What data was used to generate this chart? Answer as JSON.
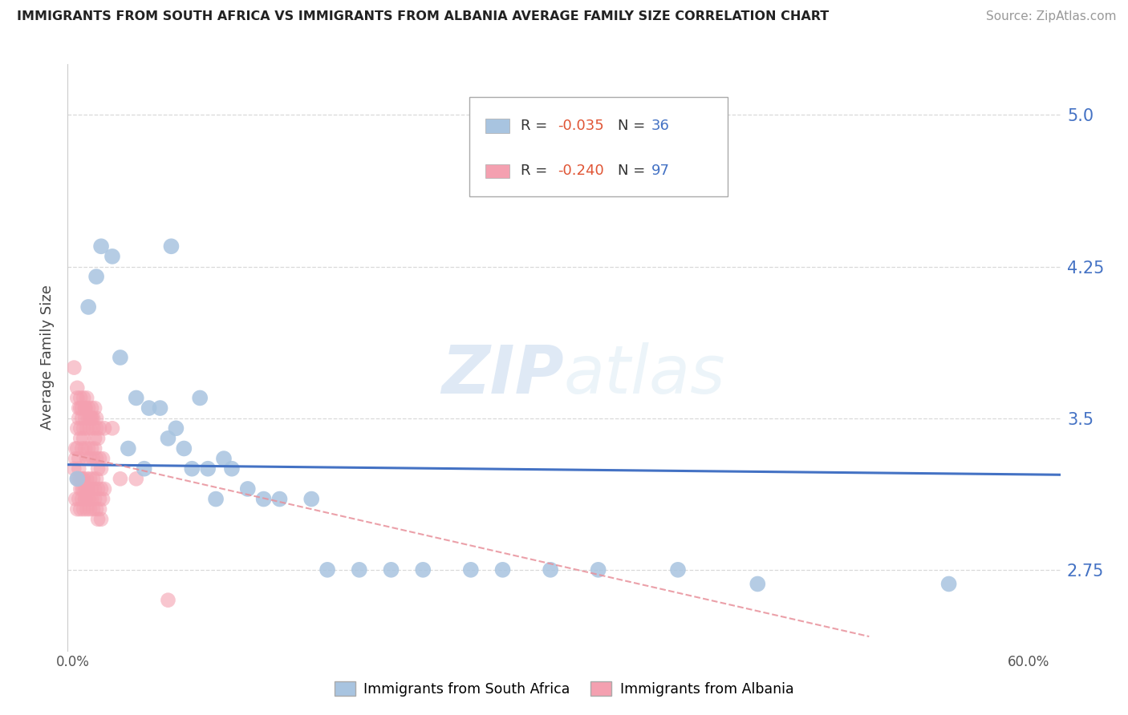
{
  "title": "IMMIGRANTS FROM SOUTH AFRICA VS IMMIGRANTS FROM ALBANIA AVERAGE FAMILY SIZE CORRELATION CHART",
  "source": "Source: ZipAtlas.com",
  "ylabel": "Average Family Size",
  "ylim": [
    2.35,
    5.25
  ],
  "xlim": [
    -0.003,
    0.62
  ],
  "yticks": [
    2.75,
    3.5,
    4.25,
    5.0
  ],
  "xticks": [
    0.0,
    0.1,
    0.2,
    0.3,
    0.4,
    0.5,
    0.6
  ],
  "xtick_labels": [
    "0.0%",
    "",
    "",
    "",
    "",
    "",
    "60.0%"
  ],
  "color_blue": "#a8c4e0",
  "color_pink": "#f4a0b0",
  "line_blue": "#4472c4",
  "bg_color": "#ffffff",
  "grid_color": "#d0d0d0",
  "title_color": "#222222",
  "right_tick_color": "#4472c4",
  "blue_x": [
    0.003,
    0.01,
    0.018,
    0.03,
    0.04,
    0.048,
    0.055,
    0.06,
    0.065,
    0.07,
    0.075,
    0.08,
    0.085,
    0.09,
    0.095,
    0.1,
    0.11,
    0.12,
    0.13,
    0.15,
    0.16,
    0.18,
    0.2,
    0.22,
    0.25,
    0.27,
    0.3,
    0.33,
    0.38,
    0.43,
    0.55,
    0.035,
    0.045,
    0.025,
    0.015,
    0.062
  ],
  "blue_y": [
    3.2,
    4.05,
    4.35,
    3.8,
    3.6,
    3.55,
    3.55,
    3.4,
    3.45,
    3.35,
    3.25,
    3.6,
    3.25,
    3.1,
    3.3,
    3.25,
    3.15,
    3.1,
    3.1,
    3.1,
    2.75,
    2.75,
    2.75,
    2.75,
    2.75,
    2.75,
    2.75,
    2.75,
    2.75,
    2.68,
    2.68,
    3.35,
    3.25,
    4.3,
    4.2,
    4.35
  ],
  "pink_x_dense": [
    0.001,
    0.002,
    0.003,
    0.004,
    0.005,
    0.006,
    0.007,
    0.008,
    0.009,
    0.01,
    0.011,
    0.012,
    0.013,
    0.014,
    0.015,
    0.016,
    0.017,
    0.018,
    0.019,
    0.02,
    0.002,
    0.003,
    0.004,
    0.005,
    0.006,
    0.007,
    0.008,
    0.009,
    0.01,
    0.011,
    0.012,
    0.013,
    0.014,
    0.015,
    0.016,
    0.017,
    0.018,
    0.019,
    0.002,
    0.003,
    0.004,
    0.005,
    0.006,
    0.007,
    0.008,
    0.009,
    0.01,
    0.011,
    0.012,
    0.013,
    0.014,
    0.015,
    0.016,
    0.017,
    0.018,
    0.003,
    0.004,
    0.005,
    0.006,
    0.007,
    0.008,
    0.009,
    0.01,
    0.011,
    0.012,
    0.013,
    0.014,
    0.015,
    0.016,
    0.017,
    0.003,
    0.004,
    0.005,
    0.006,
    0.007,
    0.008,
    0.009,
    0.01,
    0.011,
    0.012,
    0.013,
    0.014,
    0.015,
    0.004,
    0.005,
    0.006,
    0.007,
    0.008,
    0.009,
    0.01
  ],
  "pink_y_dense": [
    3.25,
    3.3,
    3.2,
    3.25,
    3.2,
    3.15,
    3.2,
    3.15,
    3.2,
    3.15,
    3.2,
    3.15,
    3.2,
    3.15,
    3.2,
    3.15,
    3.1,
    3.15,
    3.1,
    3.15,
    3.35,
    3.35,
    3.3,
    3.4,
    3.35,
    3.4,
    3.35,
    3.3,
    3.35,
    3.3,
    3.35,
    3.3,
    3.35,
    3.3,
    3.25,
    3.3,
    3.25,
    3.3,
    3.1,
    3.05,
    3.1,
    3.05,
    3.1,
    3.05,
    3.1,
    3.05,
    3.1,
    3.05,
    3.1,
    3.05,
    3.1,
    3.05,
    3.0,
    3.05,
    3.0,
    3.45,
    3.5,
    3.45,
    3.5,
    3.45,
    3.5,
    3.45,
    3.5,
    3.45,
    3.5,
    3.45,
    3.4,
    3.45,
    3.4,
    3.45,
    3.6,
    3.55,
    3.6,
    3.55,
    3.6,
    3.55,
    3.6,
    3.55,
    3.5,
    3.55,
    3.5,
    3.55,
    3.5,
    3.2,
    3.15,
    3.2,
    3.15,
    3.1,
    3.15,
    3.1
  ],
  "pink_x_sparse": [
    0.001,
    0.003,
    0.005,
    0.008,
    0.012,
    0.02,
    0.025,
    0.03,
    0.04,
    0.06
  ],
  "pink_y_sparse": [
    3.75,
    3.65,
    3.55,
    3.55,
    3.5,
    3.45,
    3.45,
    3.2,
    3.2,
    2.6
  ],
  "blue_line_x": [
    -0.003,
    0.62
  ],
  "blue_line_y": [
    3.27,
    3.22
  ],
  "pink_line_x0": 0.0,
  "pink_line_y0": 3.32,
  "pink_line_x1": 0.5,
  "pink_line_y1": 2.42
}
